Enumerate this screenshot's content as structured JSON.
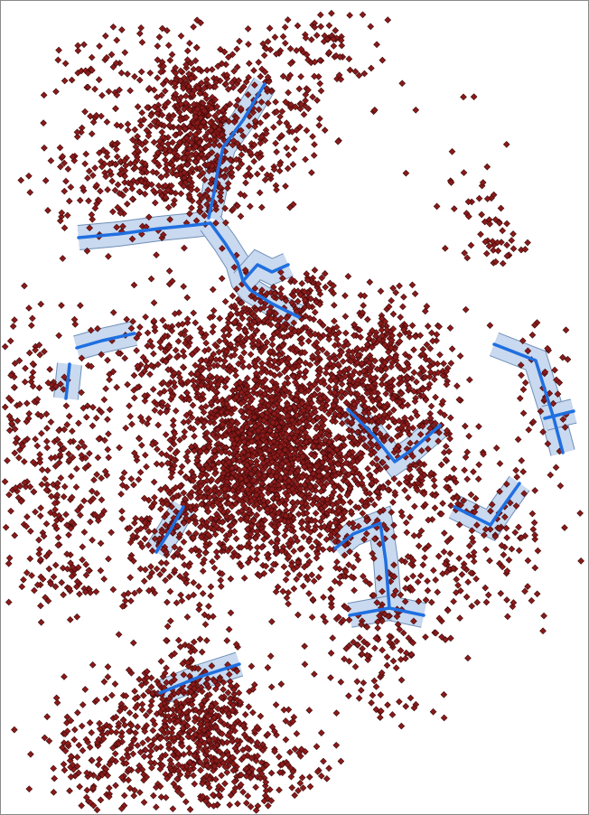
{
  "map": {
    "background_color": "#ffffff",
    "border_color": "#8a8a8a",
    "point_symbol": "diamond",
    "point_fill_color": "#8b1a1a",
    "point_stroke_color": "#3a0a0a",
    "line_color": "#1f6fe0",
    "buffer_fill_color": "#c9d9ef",
    "buffer_stroke_color": "#6f8fb8"
  }
}
